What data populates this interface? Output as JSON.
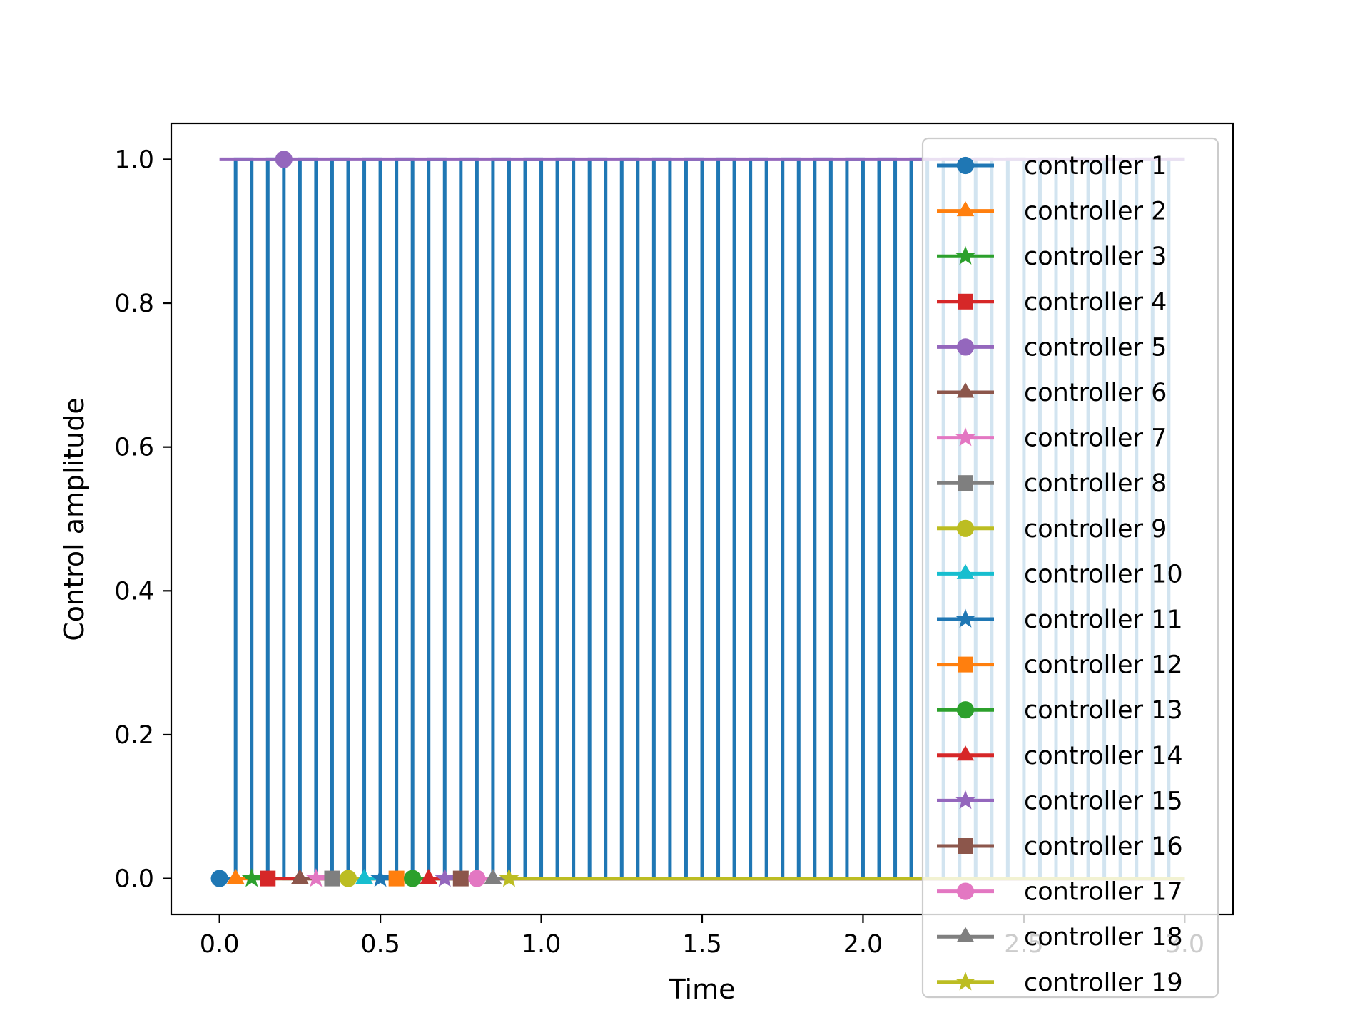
{
  "chart_data": {
    "type": "line",
    "step": "post",
    "xlabel": "Time",
    "ylabel": "Control amplitude",
    "xlim": [
      -0.15,
      3.15
    ],
    "ylim": [
      -0.05,
      1.05
    ],
    "x_ticks": [
      0.0,
      0.5,
      1.0,
      1.5,
      2.0,
      2.5,
      3.0
    ],
    "x_tick_labels": [
      "0.0",
      "0.5",
      "1.0",
      "1.5",
      "2.0",
      "2.5",
      "3.0"
    ],
    "y_ticks": [
      0.0,
      0.2,
      0.4,
      0.6,
      0.8,
      1.0
    ],
    "y_tick_labels": [
      "0.0",
      "0.2",
      "0.4",
      "0.6",
      "0.8",
      "1.0"
    ],
    "grid": false,
    "legend_position": "right",
    "dt": 0.05,
    "series": [
      {
        "name": "controller 1",
        "color": "#1f77b4",
        "marker": "circle",
        "pattern": "alternating",
        "start_value": 0,
        "start_x": 0.0,
        "end_x": 3.0
      },
      {
        "name": "controller 2",
        "color": "#ff7f0e",
        "marker": "triangle",
        "constant": 0,
        "start_x": 0.05,
        "end_x": 3.0
      },
      {
        "name": "controller 3",
        "color": "#2ca02c",
        "marker": "star",
        "constant": 0,
        "start_x": 0.1,
        "end_x": 3.0
      },
      {
        "name": "controller 4",
        "color": "#d62728",
        "marker": "square",
        "constant": 0,
        "start_x": 0.15,
        "end_x": 3.0
      },
      {
        "name": "controller 5",
        "color": "#9467bd",
        "marker": "circle",
        "constant": 1,
        "start_x": 0.0,
        "end_x": 3.0,
        "marker_x": 0.2
      },
      {
        "name": "controller 6",
        "color": "#8c564b",
        "marker": "triangle",
        "constant": 0,
        "start_x": 0.25,
        "end_x": 3.0
      },
      {
        "name": "controller 7",
        "color": "#e377c2",
        "marker": "star",
        "constant": 0,
        "start_x": 0.3,
        "end_x": 3.0
      },
      {
        "name": "controller 8",
        "color": "#7f7f7f",
        "marker": "square",
        "constant": 0,
        "start_x": 0.35,
        "end_x": 3.0
      },
      {
        "name": "controller 9",
        "color": "#bcbd22",
        "marker": "circle",
        "constant": 0,
        "start_x": 0.4,
        "end_x": 3.0
      },
      {
        "name": "controller 10",
        "color": "#17becf",
        "marker": "triangle",
        "constant": 0,
        "start_x": 0.45,
        "end_x": 3.0
      },
      {
        "name": "controller 11",
        "color": "#1f77b4",
        "marker": "star",
        "constant": 0,
        "start_x": 0.5,
        "end_x": 3.0
      },
      {
        "name": "controller 12",
        "color": "#ff7f0e",
        "marker": "square",
        "constant": 0,
        "start_x": 0.55,
        "end_x": 3.0
      },
      {
        "name": "controller 13",
        "color": "#2ca02c",
        "marker": "circle",
        "constant": 0,
        "start_x": 0.6,
        "end_x": 3.0
      },
      {
        "name": "controller 14",
        "color": "#d62728",
        "marker": "triangle",
        "constant": 0,
        "start_x": 0.65,
        "end_x": 3.0
      },
      {
        "name": "controller 15",
        "color": "#9467bd",
        "marker": "star",
        "constant": 0,
        "start_x": 0.7,
        "end_x": 3.0
      },
      {
        "name": "controller 16",
        "color": "#8c564b",
        "marker": "square",
        "constant": 0,
        "start_x": 0.75,
        "end_x": 3.0
      },
      {
        "name": "controller 17",
        "color": "#e377c2",
        "marker": "circle",
        "constant": 0,
        "start_x": 0.8,
        "end_x": 3.0
      },
      {
        "name": "controller 18",
        "color": "#7f7f7f",
        "marker": "triangle",
        "constant": 0,
        "start_x": 0.85,
        "end_x": 3.0
      },
      {
        "name": "controller 19",
        "color": "#bcbd22",
        "marker": "star",
        "constant": 0,
        "start_x": 0.9,
        "end_x": 3.0
      }
    ]
  }
}
